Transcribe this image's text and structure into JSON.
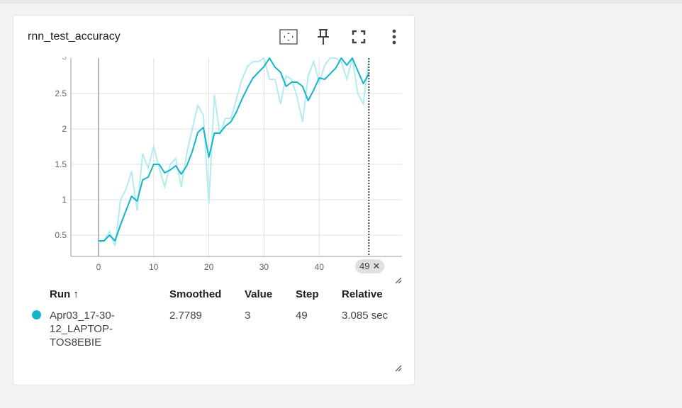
{
  "card": {
    "title": "rnn_test_accuracy",
    "tools": {
      "fit_icon": "fit-domain-icon",
      "pin_icon": "pin-icon",
      "fullscreen_icon": "fullscreen-icon",
      "more_icon": "more-vert-icon"
    }
  },
  "chart_data": {
    "type": "line",
    "x_ticks": [
      "0",
      "10",
      "20",
      "30",
      "40"
    ],
    "y_ticks": [
      "0.5",
      "1",
      "1.5",
      "2",
      "2.5"
    ],
    "y_top_partial_tick": "3",
    "xlim": [
      -5,
      55
    ],
    "ylim": [
      0.2,
      3.0
    ],
    "grid": true,
    "selected_step_label": "49",
    "selected_step": 49,
    "colors": {
      "smoothed": "#12b5cb",
      "raw": "#b2ebf2",
      "grid": "#e0e0e0",
      "axis": "#9e9e9e"
    },
    "series": [
      {
        "x": [
          0,
          1,
          2,
          3,
          4,
          5,
          6,
          7,
          8,
          9,
          10,
          11,
          12,
          13,
          14,
          15,
          16,
          17,
          18,
          19,
          20,
          21,
          22,
          23,
          24,
          25,
          26,
          27,
          28,
          29,
          30,
          31,
          32,
          33,
          34,
          35,
          36,
          37,
          38,
          39,
          40,
          41,
          42,
          43,
          44,
          45,
          46,
          47,
          48,
          49
        ],
        "raw": [
          0.4,
          0.42,
          0.55,
          0.35,
          1.0,
          1.15,
          1.4,
          0.85,
          1.65,
          1.45,
          1.75,
          1.45,
          1.18,
          1.5,
          1.58,
          1.18,
          1.65,
          2.0,
          2.33,
          2.2,
          0.95,
          2.48,
          1.92,
          2.15,
          2.15,
          2.42,
          2.7,
          2.88,
          2.95,
          2.95,
          3.0,
          2.7,
          2.7,
          2.35,
          2.75,
          2.7,
          2.45,
          2.1,
          2.75,
          2.95,
          2.65,
          2.9,
          3.0,
          3.0,
          2.95,
          2.7,
          3.0,
          2.5,
          2.35,
          3.0
        ],
        "smoothed": [
          0.42,
          0.42,
          0.5,
          0.42,
          0.65,
          0.85,
          1.05,
          0.98,
          1.28,
          1.32,
          1.5,
          1.5,
          1.38,
          1.42,
          1.48,
          1.36,
          1.48,
          1.68,
          1.95,
          2.02,
          1.6,
          1.94,
          1.94,
          2.04,
          2.1,
          2.24,
          2.42,
          2.58,
          2.72,
          2.8,
          2.88,
          3.0,
          2.87,
          2.8,
          2.6,
          2.66,
          2.66,
          2.6,
          2.4,
          2.55,
          2.72,
          2.7,
          2.78,
          2.86,
          3.0,
          2.9,
          3.0,
          2.82,
          2.64,
          2.78
        ]
      }
    ]
  },
  "table": {
    "headers": {
      "run": "Run ↑",
      "smoothed": "Smoothed",
      "value": "Value",
      "step": "Step",
      "relative": "Relative"
    },
    "row": {
      "run_line1": "Apr03_17-30-",
      "run_line2": "12_LAPTOP-",
      "run_line3": "TOS8EBIE",
      "smoothed": "2.7789",
      "value": "3",
      "step": "49",
      "relative": "3.085 sec",
      "color": "#12b5cb"
    }
  }
}
